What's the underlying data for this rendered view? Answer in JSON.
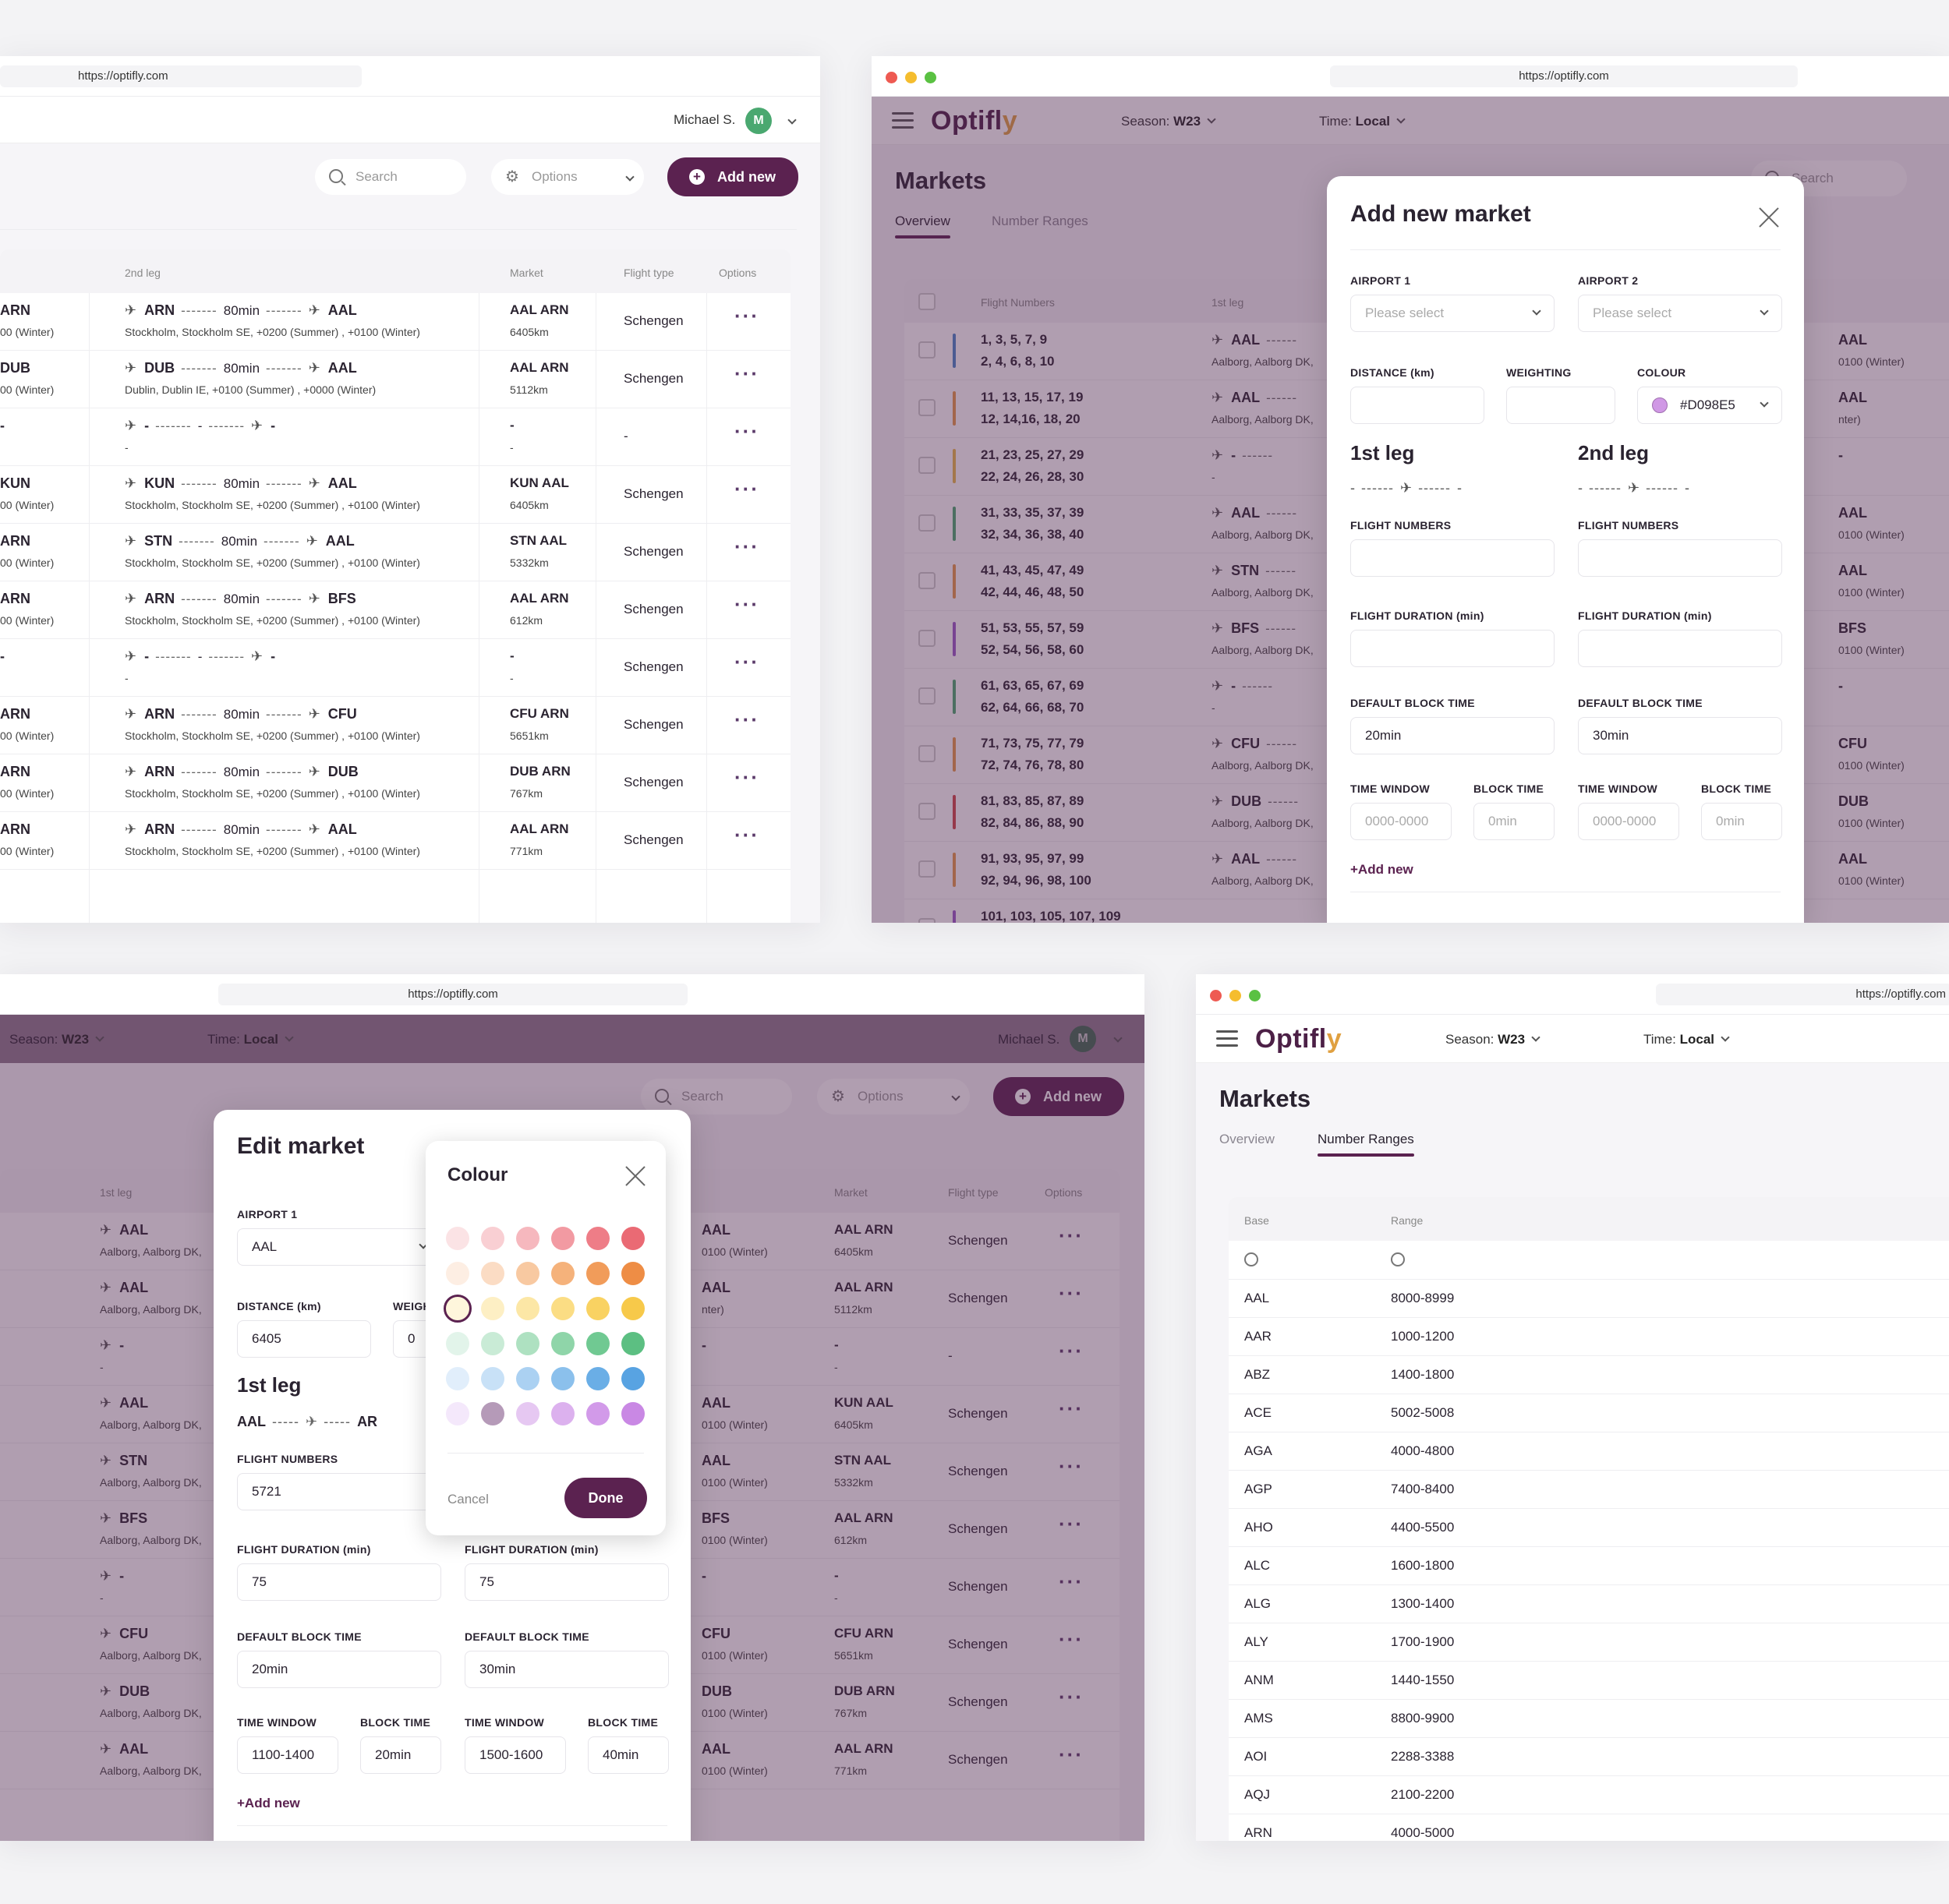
{
  "url": "https://optifly.com",
  "brand": {
    "logo": "Optifly",
    "accent": "#5b2250"
  },
  "nav": {
    "season_label": "Season:",
    "season_value": "W23",
    "time_label": "Time:",
    "time_value": "Local",
    "user": "Michael S.",
    "avatar": "M"
  },
  "toolbar": {
    "search_placeholder": "Search",
    "options_label": "Options",
    "add_label": "Add new"
  },
  "markets_title": "Markets",
  "tabs": {
    "overview": "Overview",
    "number_ranges": "Number Ranges"
  },
  "table_headers": {
    "flight_numbers": "Flight Numbers",
    "first_leg": "1st leg",
    "second_leg": "2nd leg",
    "market": "Market",
    "flight_type": "Flight type",
    "options": "Options"
  },
  "w1_rows": [
    {
      "l1": "ARN",
      "l1s": "00 (Winter)",
      "a": "ARN",
      "dur": "80min",
      "b": "AAL",
      "info": "Stockholm, Stockholm SE, +0200 (Summer) , +0100 (Winter)",
      "mkt": "AAL ARN",
      "km": "6405km",
      "type": "Schengen"
    },
    {
      "l1": "DUB",
      "l1s": "00 (Winter)",
      "a": "DUB",
      "dur": "80min",
      "b": "AAL",
      "info": "Dublin, Dublin IE, +0100 (Summer) , +0000 (Winter)",
      "mkt": "AAL ARN",
      "km": "5112km",
      "type": "Schengen"
    },
    {
      "l1": "-",
      "l1s": "",
      "a": "-",
      "dur": "-",
      "b": "-",
      "info": "-",
      "mkt": "-",
      "km": "-",
      "type": "-"
    },
    {
      "l1": "KUN",
      "l1s": "00 (Winter)",
      "a": "KUN",
      "dur": "80min",
      "b": "AAL",
      "info": "Stockholm, Stockholm SE, +0200 (Summer) , +0100 (Winter)",
      "mkt": "KUN AAL",
      "km": "6405km",
      "type": "Schengen"
    },
    {
      "l1": "ARN",
      "l1s": "00 (Winter)",
      "a": "STN",
      "dur": "80min",
      "b": "AAL",
      "info": "Stockholm, Stockholm SE, +0200 (Summer) , +0100 (Winter)",
      "mkt": "STN AAL",
      "km": "5332km",
      "type": "Schengen"
    },
    {
      "l1": "ARN",
      "l1s": "00 (Winter)",
      "a": "ARN",
      "dur": "80min",
      "b": "BFS",
      "info": "Stockholm, Stockholm SE, +0200 (Summer) , +0100 (Winter)",
      "mkt": "AAL ARN",
      "km": "612km",
      "type": "Schengen"
    },
    {
      "l1": "-",
      "l1s": "",
      "a": "-",
      "dur": "-",
      "b": "-",
      "info": "-",
      "mkt": "-",
      "km": "-",
      "type": "Schengen"
    },
    {
      "l1": "ARN",
      "l1s": "00 (Winter)",
      "a": "ARN",
      "dur": "80min",
      "b": "CFU",
      "info": "Stockholm, Stockholm SE, +0200 (Summer) , +0100 (Winter)",
      "mkt": "CFU ARN",
      "km": "5651km",
      "type": "Schengen"
    },
    {
      "l1": "ARN",
      "l1s": "00 (Winter)",
      "a": "ARN",
      "dur": "80min",
      "b": "DUB",
      "info": "Stockholm, Stockholm SE, +0200 (Summer) , +0100 (Winter)",
      "mkt": "DUB ARN",
      "km": "767km",
      "type": "Schengen"
    },
    {
      "l1": "ARN",
      "l1s": "00 (Winter)",
      "a": "ARN",
      "dur": "80min",
      "b": "AAL",
      "info": "Stockholm, Stockholm SE, +0200 (Summer) , +0100 (Winter)",
      "mkt": "AAL ARN",
      "km": "771km",
      "type": "Schengen"
    }
  ],
  "w2_rows": [
    {
      "nums1": "1, 3, 5, 7, 9",
      "nums2": "2, 4, 6, 8, 10",
      "color": "#4a86c8",
      "l1": "AAL",
      "l1s": "Aalborg, Aalborg DK,",
      "r": "AAL",
      "rs": "0100 (Winter)"
    },
    {
      "nums1": "11, 13, 15, 17, 19",
      "nums2": "12, 14,16, 18, 20",
      "color": "#e69a4a",
      "l1": "AAL",
      "l1s": "Aalborg, Aalborg DK,",
      "r": "AAL",
      "rs": "nter)"
    },
    {
      "nums1": "21, 23, 25, 27, 29",
      "nums2": "22, 24, 26, 28, 30",
      "color": "#e8b84a",
      "l1": "-",
      "l1s": "-",
      "r": "-",
      "rs": ""
    },
    {
      "nums1": "31, 33, 35, 37, 39",
      "nums2": "32, 34, 36, 38, 40",
      "color": "#4aa870",
      "l1": "AAL",
      "l1s": "Aalborg, Aalborg DK,",
      "r": "AAL",
      "rs": "0100 (Winter)"
    },
    {
      "nums1": "41, 43, 45, 47, 49",
      "nums2": "42, 44, 46, 48, 50",
      "color": "#e69a4a",
      "l1": "STN",
      "l1s": "Aalborg, Aalborg DK,",
      "r": "AAL",
      "rs": "0100 (Winter)"
    },
    {
      "nums1": "51, 53, 55, 57, 59",
      "nums2": "52, 54, 56, 58, 60",
      "color": "#9a5ac8",
      "l1": "BFS",
      "l1s": "Aalborg, Aalborg DK,",
      "r": "BFS",
      "rs": "0100 (Winter)"
    },
    {
      "nums1": "61, 63, 65, 67, 69",
      "nums2": "62, 64, 66, 68, 70",
      "color": "#4aa870",
      "l1": "-",
      "l1s": "-",
      "r": "-",
      "rs": ""
    },
    {
      "nums1": "71, 73, 75, 77, 79",
      "nums2": "72, 74, 76, 78, 80",
      "color": "#e69a4a",
      "l1": "CFU",
      "l1s": "Aalborg, Aalborg DK,",
      "r": "CFU",
      "rs": "0100 (Winter)"
    },
    {
      "nums1": "81, 83, 85, 87, 89",
      "nums2": "82, 84, 86, 88, 90",
      "color": "#d04848",
      "l1": "DUB",
      "l1s": "Aalborg, Aalborg DK,",
      "r": "DUB",
      "rs": "0100 (Winter)"
    },
    {
      "nums1": "91, 93, 95, 97, 99",
      "nums2": "92, 94, 96, 98, 100",
      "color": "#e69a4a",
      "l1": "AAL",
      "l1s": "Aalborg, Aalborg DK,",
      "r": "AAL",
      "rs": "0100 (Winter)"
    },
    {
      "nums1": "101, 103, 105, 107, 109",
      "nums2": "",
      "color": "#9a5ac8",
      "l1": "",
      "l1s": "",
      "r": "",
      "rs": ""
    }
  ],
  "add_modal": {
    "title": "Add new market",
    "airport1": "AIRPORT 1",
    "airport2": "AIRPORT 2",
    "please_select": "Please select",
    "distance": "DISTANCE (km)",
    "weighting": "WEIGHTING",
    "colour": "COLOUR",
    "colour_value": "#D098E5",
    "leg1": "1st leg",
    "leg2": "2nd leg",
    "flight_numbers": "FLIGHT NUMBERS",
    "flight_duration": "FLIGHT DURATION (min)",
    "default_block": "DEFAULT BLOCK TIME",
    "block1": "20min",
    "block2": "30min",
    "time_window": "TIME WINDOW",
    "block_time": "BLOCK TIME",
    "tw_ph": "0000-0000",
    "bt_ph": "0min",
    "add_new": "+Add new"
  },
  "w3_rows": [
    {
      "l1": "AAL",
      "l1s": "Aalborg, Aalborg DK,",
      "r": "AAL",
      "rs": "0100 (Winter)",
      "mkt": "AAL ARN",
      "km": "6405km",
      "type": "Schengen"
    },
    {
      "l1": "AAL",
      "l1s": "Aalborg, Aalborg DK,",
      "r": "AAL",
      "rs": "nter)",
      "mkt": "AAL ARN",
      "km": "5112km",
      "type": "Schengen"
    },
    {
      "l1": "-",
      "l1s": "-",
      "r": "-",
      "rs": "",
      "mkt": "-",
      "km": "-",
      "type": "-"
    },
    {
      "l1": "AAL",
      "l1s": "Aalborg, Aalborg DK,",
      "r": "AAL",
      "rs": "0100 (Winter)",
      "mkt": "KUN AAL",
      "km": "6405km",
      "type": "Schengen"
    },
    {
      "l1": "STN",
      "l1s": "Aalborg, Aalborg DK,",
      "r": "AAL",
      "rs": "0100 (Winter)",
      "mkt": "STN AAL",
      "km": "5332km",
      "type": "Schengen"
    },
    {
      "l1": "BFS",
      "l1s": "Aalborg, Aalborg DK,",
      "r": "BFS",
      "rs": "0100 (Winter)",
      "mkt": "AAL ARN",
      "km": "612km",
      "type": "Schengen"
    },
    {
      "l1": "-",
      "l1s": "-",
      "r": "-",
      "rs": "",
      "mkt": "-",
      "km": "-",
      "type": "Schengen"
    },
    {
      "l1": "CFU",
      "l1s": "Aalborg, Aalborg DK,",
      "r": "CFU",
      "rs": "0100 (Winter)",
      "mkt": "CFU ARN",
      "km": "5651km",
      "type": "Schengen"
    },
    {
      "l1": "DUB",
      "l1s": "Aalborg, Aalborg DK,",
      "r": "DUB",
      "rs": "0100 (Winter)",
      "mkt": "DUB ARN",
      "km": "767km",
      "type": "Schengen"
    },
    {
      "l1": "AAL",
      "l1s": "Aalborg, Aalborg DK,",
      "r": "AAL",
      "rs": "0100 (Winter)",
      "mkt": "AAL ARN",
      "km": "771km",
      "type": "Schengen"
    }
  ],
  "edit_modal": {
    "title": "Edit market",
    "airport1": "AIRPORT 1",
    "airport1_value": "AAL",
    "distance": "DISTANCE (km)",
    "distance_value": "6405",
    "weigh": "WEIGH",
    "weigh_value": "0",
    "leg1": "1st leg",
    "leg_from": "AAL",
    "leg_to": "AR",
    "flight_numbers": "FLIGHT NUMBERS",
    "fn_value": "5721",
    "flight_duration": "FLIGHT DURATION (min)",
    "fd1": "75",
    "fd2": "75",
    "default_block": "DEFAULT BLOCK TIME",
    "block1": "20min",
    "block2": "30min",
    "time_window": "TIME WINDOW",
    "block_time": "BLOCK TIME",
    "tw1": "1100-1400",
    "bt1": "20min",
    "tw2": "1500-1600",
    "bt2": "40min",
    "add_new": "+Add new"
  },
  "colour_popup": {
    "title": "Colour",
    "cancel": "Cancel",
    "done": "Done",
    "swatches": [
      [
        "#fbe3e5",
        "#f9cfd3",
        "#f6b8be",
        "#f29aa2",
        "#ee7d87",
        "#ea6a74"
      ],
      [
        "#fdeee3",
        "#fbdcc4",
        "#f8c9a1",
        "#f5b27b",
        "#f19c5a",
        "#ee8d45"
      ],
      [
        "#fef6dc",
        "#fdefc4",
        "#fce7a6",
        "#fbdd84",
        "#f9d262",
        "#f7c94a"
      ],
      [
        "#e2f4ea",
        "#c9ebd6",
        "#aee1c1",
        "#8fd5a9",
        "#70c992",
        "#5cbf82"
      ],
      [
        "#e1eefb",
        "#c8e1f7",
        "#abd1f2",
        "#8bc0ec",
        "#6aaee6",
        "#58a3e2"
      ],
      [
        "#f4e8fb",
        "#b59ab8",
        "#e6c8f2",
        "#dcb1ee",
        "#d29ae9",
        "#c988e4"
      ]
    ]
  },
  "number_ranges": {
    "headers": {
      "base": "Base",
      "range": "Range"
    },
    "rows": [
      {
        "base": "AAL",
        "range": "8000-8999"
      },
      {
        "base": "AAR",
        "range": "1000-1200"
      },
      {
        "base": "ABZ",
        "range": "1400-1800"
      },
      {
        "base": "ACE",
        "range": "5002-5008"
      },
      {
        "base": "AGA",
        "range": "4000-4800"
      },
      {
        "base": "AGP",
        "range": "7400-8400"
      },
      {
        "base": "AHO",
        "range": "4400-5500"
      },
      {
        "base": "ALC",
        "range": "1600-1800"
      },
      {
        "base": "ALG",
        "range": "1300-1400"
      },
      {
        "base": "ALY",
        "range": "1700-1900"
      },
      {
        "base": "ANM",
        "range": "1440-1550"
      },
      {
        "base": "AMS",
        "range": "8800-9900"
      },
      {
        "base": "AOI",
        "range": "2288-3388"
      },
      {
        "base": "AQJ",
        "range": "2100-2200"
      },
      {
        "base": "ARN",
        "range": "4000-5000"
      }
    ]
  }
}
